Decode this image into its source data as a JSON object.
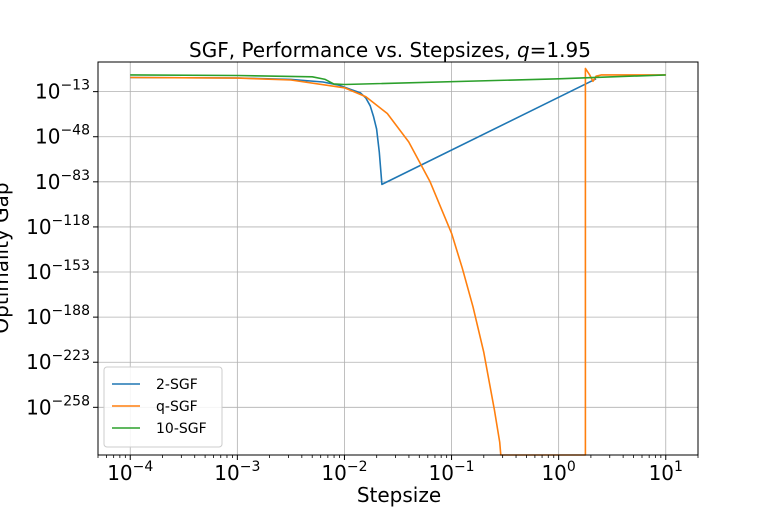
{
  "chart_data": {
    "type": "line",
    "title": "SGF, Performance vs. Stepsizes, ",
    "title_q_symbol": "q",
    "title_q_value": "=1.95",
    "xlabel": "Stepsize",
    "ylabel": "Optimality Gap",
    "xscale": "log",
    "yscale": "log",
    "xlim": [
      5e-05,
      20
    ],
    "ylim_log10": [
      -295,
      10
    ],
    "grid": true,
    "legend_position": "lower-left",
    "x_ticks": [
      {
        "exp": -4,
        "base": "10",
        "sup": "−4"
      },
      {
        "exp": -3,
        "base": "10",
        "sup": "−3"
      },
      {
        "exp": -2,
        "base": "10",
        "sup": "−2"
      },
      {
        "exp": -1,
        "base": "10",
        "sup": "−1"
      },
      {
        "exp": 0,
        "base": "10",
        "sup": "0"
      },
      {
        "exp": 1,
        "base": "10",
        "sup": "1"
      }
    ],
    "y_ticks": [
      {
        "exp": -13,
        "base": "10",
        "sup": "−13"
      },
      {
        "exp": -48,
        "base": "10",
        "sup": "−48"
      },
      {
        "exp": -83,
        "base": "10",
        "sup": "−83"
      },
      {
        "exp": -118,
        "base": "10",
        "sup": "−118"
      },
      {
        "exp": -153,
        "base": "10",
        "sup": "−153"
      },
      {
        "exp": -188,
        "base": "10",
        "sup": "−188"
      },
      {
        "exp": -223,
        "base": "10",
        "sup": "−223"
      },
      {
        "exp": -258,
        "base": "10",
        "sup": "−258"
      }
    ],
    "series": [
      {
        "name": "2-SGF",
        "color": "#1f77b4",
        "log10_x": [
          -4,
          -3,
          -2.5,
          -2.2,
          -2.05,
          -1.95,
          -1.85,
          -1.8,
          -1.76,
          -1.73,
          -1.7,
          -1.675,
          -1.65,
          0.35
        ],
        "log10_y": [
          -2,
          -2.4,
          -3.5,
          -5.5,
          -8,
          -11,
          -14,
          -18,
          -24,
          -32,
          -42,
          -60,
          -85,
          -3
        ]
      },
      {
        "name": "q-SGF",
        "color": "#ff7f0e",
        "log10_x": [
          -4,
          -3,
          -2.5,
          -2,
          -1.8,
          -1.6,
          -1.4,
          -1.2,
          -1.0,
          -0.9,
          -0.8,
          -0.7,
          -0.6,
          -0.55,
          -0.54,
          -0.54,
          0.25,
          0.25,
          0.29,
          0.32,
          0.35,
          0.4,
          1
        ],
        "log10_y": [
          -2,
          -2.5,
          -4,
          -10,
          -17,
          -30,
          -52,
          -83,
          -123,
          -150,
          -180,
          -215,
          -260,
          -285,
          -295,
          -295,
          -295,
          5,
          0,
          -5,
          -1,
          0,
          0
        ]
      },
      {
        "name": "10-SGF",
        "color": "#2ca02c",
        "log10_x": [
          -4,
          -3,
          -2.3,
          -2.18,
          -2.1,
          -2.0,
          0,
          1
        ],
        "log10_y": [
          0,
          -0.5,
          -1.5,
          -3.5,
          -7,
          -7.5,
          -3,
          0
        ]
      }
    ]
  }
}
